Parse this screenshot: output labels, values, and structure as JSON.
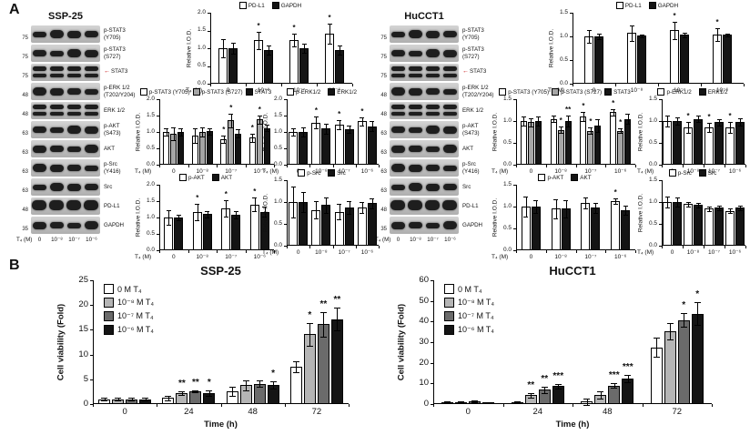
{
  "panels": {
    "a_label": "A",
    "b_label": "B"
  },
  "blots": {
    "ssp25": {
      "title": "SSP-25",
      "dose_label": "T₄ (M)",
      "doses": [
        "0",
        "10⁻⁸",
        "10⁻⁷",
        "10⁻⁶"
      ],
      "rows": [
        {
          "mw": "75",
          "lines": [
            "p-STAT3",
            "(Y705)"
          ]
        },
        {
          "mw": "75",
          "lines": [
            "p-STAT3",
            "(S727)"
          ]
        },
        {
          "mw": "75",
          "lines": [
            "STAT3"
          ],
          "arrow": true,
          "double": true
        },
        {
          "mw": "48",
          "lines": [
            "p-ERK 1/2",
            "(T202/Y204)"
          ]
        },
        {
          "mw": "48",
          "lines": [
            "ERK 1/2"
          ],
          "double": true
        },
        {
          "mw": "63",
          "lines": [
            "p-AKT",
            "(S473)"
          ]
        },
        {
          "mw": "63",
          "lines": [
            "AKT"
          ]
        },
        {
          "mw": "63",
          "lines": [
            "p-Src",
            "(Y416)"
          ]
        },
        {
          "mw": "63",
          "lines": [
            "Src"
          ]
        },
        {
          "mw": "48",
          "lines": [
            "PD-L1"
          ],
          "tall": true
        },
        {
          "mw": "35",
          "lines": [
            "GAPDH"
          ]
        }
      ]
    },
    "hucct1": {
      "title": "HuCCT1",
      "dose_label": "T₄ (M)",
      "doses": [
        "0",
        "10⁻⁸",
        "10⁻⁷",
        "10⁻⁶"
      ],
      "rows": [
        {
          "mw": "75",
          "lines": [
            "p-STAT3",
            "(Y705)"
          ]
        },
        {
          "mw": "75",
          "lines": [
            "p-STAT3",
            "(S727)"
          ]
        },
        {
          "mw": "75",
          "lines": [
            "STAT3"
          ],
          "arrow": true,
          "double": true
        },
        {
          "mw": "48",
          "lines": [
            "p-ERK 1/2",
            "(T202/Y204)"
          ]
        },
        {
          "mw": "48",
          "lines": [
            "ERK 1/2"
          ],
          "double": true
        },
        {
          "mw": "63",
          "lines": [
            "p-AKT",
            "(S473)"
          ]
        },
        {
          "mw": "63",
          "lines": [
            "AKT"
          ]
        },
        {
          "mw": "63",
          "lines": [
            "p-Src",
            "(Y416)"
          ]
        },
        {
          "mw": "63",
          "lines": [
            "Src"
          ]
        },
        {
          "mw": "48",
          "lines": [
            "PD-L1"
          ],
          "tall": true
        },
        {
          "mw": "35",
          "lines": [
            "GAPDH"
          ]
        }
      ]
    }
  },
  "chart_data": {
    "s_pdl1": {
      "type": "bar",
      "size": "small",
      "legend_pos": "top",
      "ylabel": "Relative I.O.D.",
      "xlabel": "T₄ (M)",
      "categories": [
        "0",
        "10⁻⁸",
        "10⁻⁷",
        "10⁻⁶"
      ],
      "ylim": [
        0,
        2.0
      ],
      "ystep": 0.5,
      "ydec": 1,
      "series": [
        {
          "name": "PD-L1",
          "fill": "#ffffff",
          "values": [
            1.0,
            1.22,
            1.22,
            1.42
          ],
          "err": [
            0.25,
            0.25,
            0.18,
            0.28
          ],
          "sig": [
            "",
            "*",
            "*",
            "*"
          ]
        },
        {
          "name": "GAPDH",
          "fill": "#141414",
          "values": [
            1.0,
            0.95,
            1.0,
            0.95
          ],
          "err": [
            0.15,
            0.12,
            0.12,
            0.12
          ]
        }
      ]
    },
    "s_pstat3": {
      "type": "bar",
      "size": "small",
      "legend_pos": "top",
      "ylabel": "Relative I.O.D.",
      "xlabel": "T₄ (M)",
      "categories": [
        "0",
        "10⁻⁸",
        "10⁻⁷",
        "10⁻⁶"
      ],
      "ylim": [
        0,
        2.0
      ],
      "ystep": 0.5,
      "ydec": 1,
      "series": [
        {
          "name": "p-STAT3 (Y705)",
          "fill": "#ffffff",
          "values": [
            1.0,
            0.88,
            0.78,
            0.82
          ],
          "err": [
            0.12,
            0.22,
            0.1,
            0.12
          ],
          "sig": [
            "",
            "",
            "*",
            "*"
          ]
        },
        {
          "name": "p-STAT3 (S727)",
          "fill": "#a6a6a6",
          "values": [
            0.95,
            1.0,
            1.35,
            1.38
          ],
          "err": [
            0.2,
            0.15,
            0.2,
            0.12
          ],
          "sig": [
            "",
            "",
            "*",
            "*"
          ]
        },
        {
          "name": "STAT3",
          "fill": "#141414",
          "values": [
            1.0,
            1.02,
            0.95,
            1.12
          ],
          "err": [
            0.12,
            0.1,
            0.12,
            0.1
          ]
        }
      ]
    },
    "s_perk": {
      "type": "bar",
      "size": "small",
      "legend_pos": "top",
      "ylabel": "Relative I.O.D.",
      "xlabel": "T₄ (M)",
      "categories": [
        "0",
        "10⁻⁸",
        "10⁻⁷",
        "10⁻⁶"
      ],
      "ylim": [
        0,
        2.0
      ],
      "ystep": 0.5,
      "ydec": 1,
      "series": [
        {
          "name": "p-ERK1/2",
          "fill": "#ffffff",
          "values": [
            1.0,
            1.28,
            1.22,
            1.32
          ],
          "err": [
            0.12,
            0.18,
            0.15,
            0.12
          ],
          "sig": [
            "",
            "*",
            "*",
            "*"
          ]
        },
        {
          "name": "ERK1/2",
          "fill": "#141414",
          "values": [
            1.0,
            1.1,
            1.08,
            1.18
          ],
          "err": [
            0.15,
            0.15,
            0.12,
            0.15
          ]
        }
      ]
    },
    "s_pakt": {
      "type": "bar",
      "size": "small",
      "legend_pos": "top",
      "ylabel": "Relative I.O.D.",
      "xlabel": "T₄ (M)",
      "categories": [
        "0",
        "10⁻⁸",
        "10⁻⁷",
        "10⁻⁶"
      ],
      "ylim": [
        0,
        2.0
      ],
      "ystep": 0.5,
      "ydec": 1,
      "series": [
        {
          "name": "p-AKT",
          "fill": "#ffffff",
          "values": [
            1.0,
            1.18,
            1.28,
            1.4
          ],
          "err": [
            0.22,
            0.25,
            0.25,
            0.2
          ],
          "sig": [
            "",
            "*",
            "*",
            "*"
          ]
        },
        {
          "name": "AKT",
          "fill": "#141414",
          "values": [
            1.0,
            1.1,
            1.08,
            1.18
          ],
          "err": [
            0.08,
            0.1,
            0.12,
            0.15
          ]
        }
      ]
    },
    "s_psrc": {
      "type": "bar",
      "size": "small",
      "legend_pos": "top",
      "ylabel": "Relative I.O.D.",
      "xlabel": "T₄ (M)",
      "categories": [
        "0",
        "10⁻⁸",
        "10⁻⁷",
        "10⁻⁶"
      ],
      "ylim": [
        0,
        1.5
      ],
      "ystep": 0.5,
      "ydec": 1,
      "series": [
        {
          "name": "p-Src",
          "fill": "#ffffff",
          "values": [
            1.0,
            0.82,
            0.78,
            0.87
          ],
          "err": [
            0.35,
            0.2,
            0.18,
            0.12
          ]
        },
        {
          "name": "Src",
          "fill": "#141414",
          "values": [
            1.0,
            0.93,
            0.88,
            0.97
          ],
          "err": [
            0.22,
            0.18,
            0.15,
            0.12
          ]
        }
      ]
    },
    "h_pdl1": {
      "type": "bar",
      "size": "small",
      "legend_pos": "top",
      "ylabel": "Relative I.O.D.",
      "xlabel": "T₄ (M)",
      "categories": [
        "0",
        "10⁻⁸",
        "10⁻⁷",
        "10⁻⁶"
      ],
      "ylim": [
        0,
        1.5
      ],
      "ystep": 0.5,
      "ydec": 1,
      "series": [
        {
          "name": "PD-L1",
          "fill": "#ffffff",
          "values": [
            1.0,
            1.07,
            1.13,
            1.04
          ],
          "err": [
            0.13,
            0.17,
            0.18,
            0.13
          ],
          "sig": [
            "",
            "",
            "*",
            "*"
          ]
        },
        {
          "name": "GAPDH",
          "fill": "#141414",
          "values": [
            1.0,
            1.01,
            1.03,
            1.03
          ],
          "err": [
            0.05,
            0.03,
            0.04,
            0.03
          ]
        }
      ]
    },
    "h_pstat3": {
      "type": "bar",
      "size": "small",
      "legend_pos": "top",
      "ylabel": "Relative I.O.D.",
      "xlabel": "T₄ (M)",
      "categories": [
        "0",
        "10⁻⁸",
        "10⁻⁷",
        "10⁻⁶"
      ],
      "ylim": [
        0,
        1.5
      ],
      "ystep": 0.5,
      "ydec": 1,
      "series": [
        {
          "name": "p-STAT3 (Y705)",
          "fill": "#ffffff",
          "values": [
            1.0,
            1.05,
            1.1,
            1.2
          ],
          "err": [
            0.1,
            0.08,
            0.1,
            0.08
          ],
          "sig": [
            "",
            "",
            "*",
            "*"
          ]
        },
        {
          "name": "p-STAT3 (S727)",
          "fill": "#a6a6a6",
          "values": [
            0.97,
            0.8,
            0.78,
            0.78
          ],
          "err": [
            0.1,
            0.08,
            0.08,
            0.06
          ],
          "sig": [
            "",
            "*",
            "*",
            "*"
          ]
        },
        {
          "name": "STAT3",
          "fill": "#141414",
          "values": [
            1.0,
            1.0,
            0.9,
            1.05
          ],
          "err": [
            0.1,
            0.12,
            0.15,
            0.12
          ],
          "sig": [
            "",
            "**",
            "",
            ""
          ]
        }
      ]
    },
    "h_perk": {
      "type": "bar",
      "size": "small",
      "legend_pos": "top",
      "ylabel": "Relative I.O.D.",
      "xlabel": "T₄ (M)",
      "categories": [
        "0",
        "10⁻⁸",
        "10⁻⁷",
        "10⁻⁶"
      ],
      "ylim": [
        0,
        1.5
      ],
      "ystep": 0.5,
      "ydec": 1,
      "series": [
        {
          "name": "p-ERK1/2",
          "fill": "#ffffff",
          "values": [
            1.0,
            0.85,
            0.85,
            0.85
          ],
          "err": [
            0.12,
            0.12,
            0.1,
            0.12
          ],
          "sig": [
            "",
            "*",
            "*",
            "*"
          ]
        },
        {
          "name": "ERK1/2",
          "fill": "#141414",
          "values": [
            1.0,
            1.05,
            0.97,
            0.98
          ],
          "err": [
            0.08,
            0.08,
            0.08,
            0.08
          ]
        }
      ]
    },
    "h_pakt": {
      "type": "bar",
      "size": "small",
      "legend_pos": "top",
      "ylabel": "Relative I.O.D.",
      "xlabel": "T₄ (M)",
      "categories": [
        "0",
        "10⁻⁸",
        "10⁻⁷",
        "10⁻⁶"
      ],
      "ylim": [
        0,
        1.5
      ],
      "ystep": 0.5,
      "ydec": 1,
      "series": [
        {
          "name": "p-AKT",
          "fill": "#ffffff",
          "values": [
            1.0,
            0.95,
            1.08,
            1.12
          ],
          "err": [
            0.22,
            0.22,
            0.12,
            0.06
          ],
          "sig": [
            "",
            "",
            "",
            "*"
          ]
        },
        {
          "name": "AKT",
          "fill": "#141414",
          "values": [
            1.0,
            0.95,
            0.97,
            0.92
          ],
          "err": [
            0.15,
            0.2,
            0.12,
            0.1
          ]
        }
      ]
    },
    "h_psrc": {
      "type": "bar",
      "size": "small",
      "legend_pos": "top",
      "ylabel": "Relative I.O.D.",
      "xlabel": "T₄ (M)",
      "categories": [
        "0",
        "10⁻⁸",
        "10⁻⁷",
        "10⁻⁶"
      ],
      "ylim": [
        0,
        1.5
      ],
      "ystep": 0.5,
      "ydec": 1,
      "series": [
        {
          "name": "p-Src",
          "fill": "#ffffff",
          "values": [
            1.0,
            0.95,
            0.85,
            0.8
          ],
          "err": [
            0.12,
            0.06,
            0.05,
            0.05
          ]
        },
        {
          "name": "Src",
          "fill": "#141414",
          "values": [
            1.0,
            0.93,
            0.87,
            0.87
          ],
          "err": [
            0.1,
            0.05,
            0.05,
            0.05
          ]
        }
      ]
    },
    "b_ssp25": {
      "type": "bar",
      "size": "large",
      "legend_pos": "box",
      "title": "SSP-25",
      "ylabel": "Cell viability (Fold)",
      "xlabel": "Time (h)",
      "categories": [
        "0",
        "24",
        "48",
        "72"
      ],
      "ylim": [
        0,
        25
      ],
      "ystep": 5,
      "ydec": 0,
      "series": [
        {
          "name": "0 M T₄",
          "fill": "#ffffff",
          "values": [
            1.0,
            1.2,
            2.6,
            7.6
          ],
          "err": [
            0.3,
            0.4,
            0.9,
            1.1
          ]
        },
        {
          "name": "10⁻⁸ M T₄",
          "fill": "#b5b5b5",
          "values": [
            1.0,
            2.2,
            3.8,
            14.1
          ],
          "err": [
            0.2,
            0.3,
            1.0,
            2.3
          ],
          "sig": [
            "",
            "**",
            "",
            "*"
          ]
        },
        {
          "name": "10⁻⁷ M T₄",
          "fill": "#6b6b6b",
          "values": [
            1.0,
            2.6,
            4.1,
            16.1
          ],
          "err": [
            0.2,
            0.2,
            0.6,
            2.5
          ],
          "sig": [
            "",
            "**",
            "",
            "**"
          ]
        },
        {
          "name": "10⁻⁶ M T₄",
          "fill": "#141414",
          "values": [
            1.0,
            2.2,
            3.9,
            17.1
          ],
          "err": [
            0.2,
            0.6,
            0.7,
            2.3
          ],
          "sig": [
            "",
            "*",
            "*",
            "**"
          ]
        }
      ]
    },
    "b_hucct1": {
      "type": "bar",
      "size": "large",
      "legend_pos": "box",
      "title": "HuCCT1",
      "ylabel": "Cell viability (Fold)",
      "xlabel": "Time (h)",
      "categories": [
        "0",
        "24",
        "48",
        "72"
      ],
      "ylim": [
        0,
        60
      ],
      "ystep": 10,
      "ydec": 0,
      "series": [
        {
          "name": "0 M T₄",
          "fill": "#ffffff",
          "values": [
            1.0,
            1.0,
            1.2,
            27.5
          ],
          "err": [
            0.3,
            0.3,
            1.5,
            4.5
          ]
        },
        {
          "name": "10⁻⁸ M T₄",
          "fill": "#b5b5b5",
          "values": [
            1.1,
            4.2,
            4.3,
            35.2
          ],
          "err": [
            0.4,
            1.3,
            1.8,
            4.0
          ],
          "sig": [
            "",
            "**",
            "",
            ""
          ]
        },
        {
          "name": "10⁻⁷ M T₄",
          "fill": "#6b6b6b",
          "values": [
            1.3,
            7.0,
            9.0,
            40.8
          ],
          "err": [
            0.3,
            1.5,
            1.2,
            3.5
          ],
          "sig": [
            "",
            "**",
            "***",
            "*"
          ]
        },
        {
          "name": "10⁻⁶ M T₄",
          "fill": "#141414",
          "values": [
            0.8,
            8.7,
            12.5,
            43.8
          ],
          "err": [
            0.3,
            1.2,
            1.8,
            5.5
          ],
          "sig": [
            "",
            "***",
            "***",
            "*"
          ]
        }
      ]
    }
  }
}
